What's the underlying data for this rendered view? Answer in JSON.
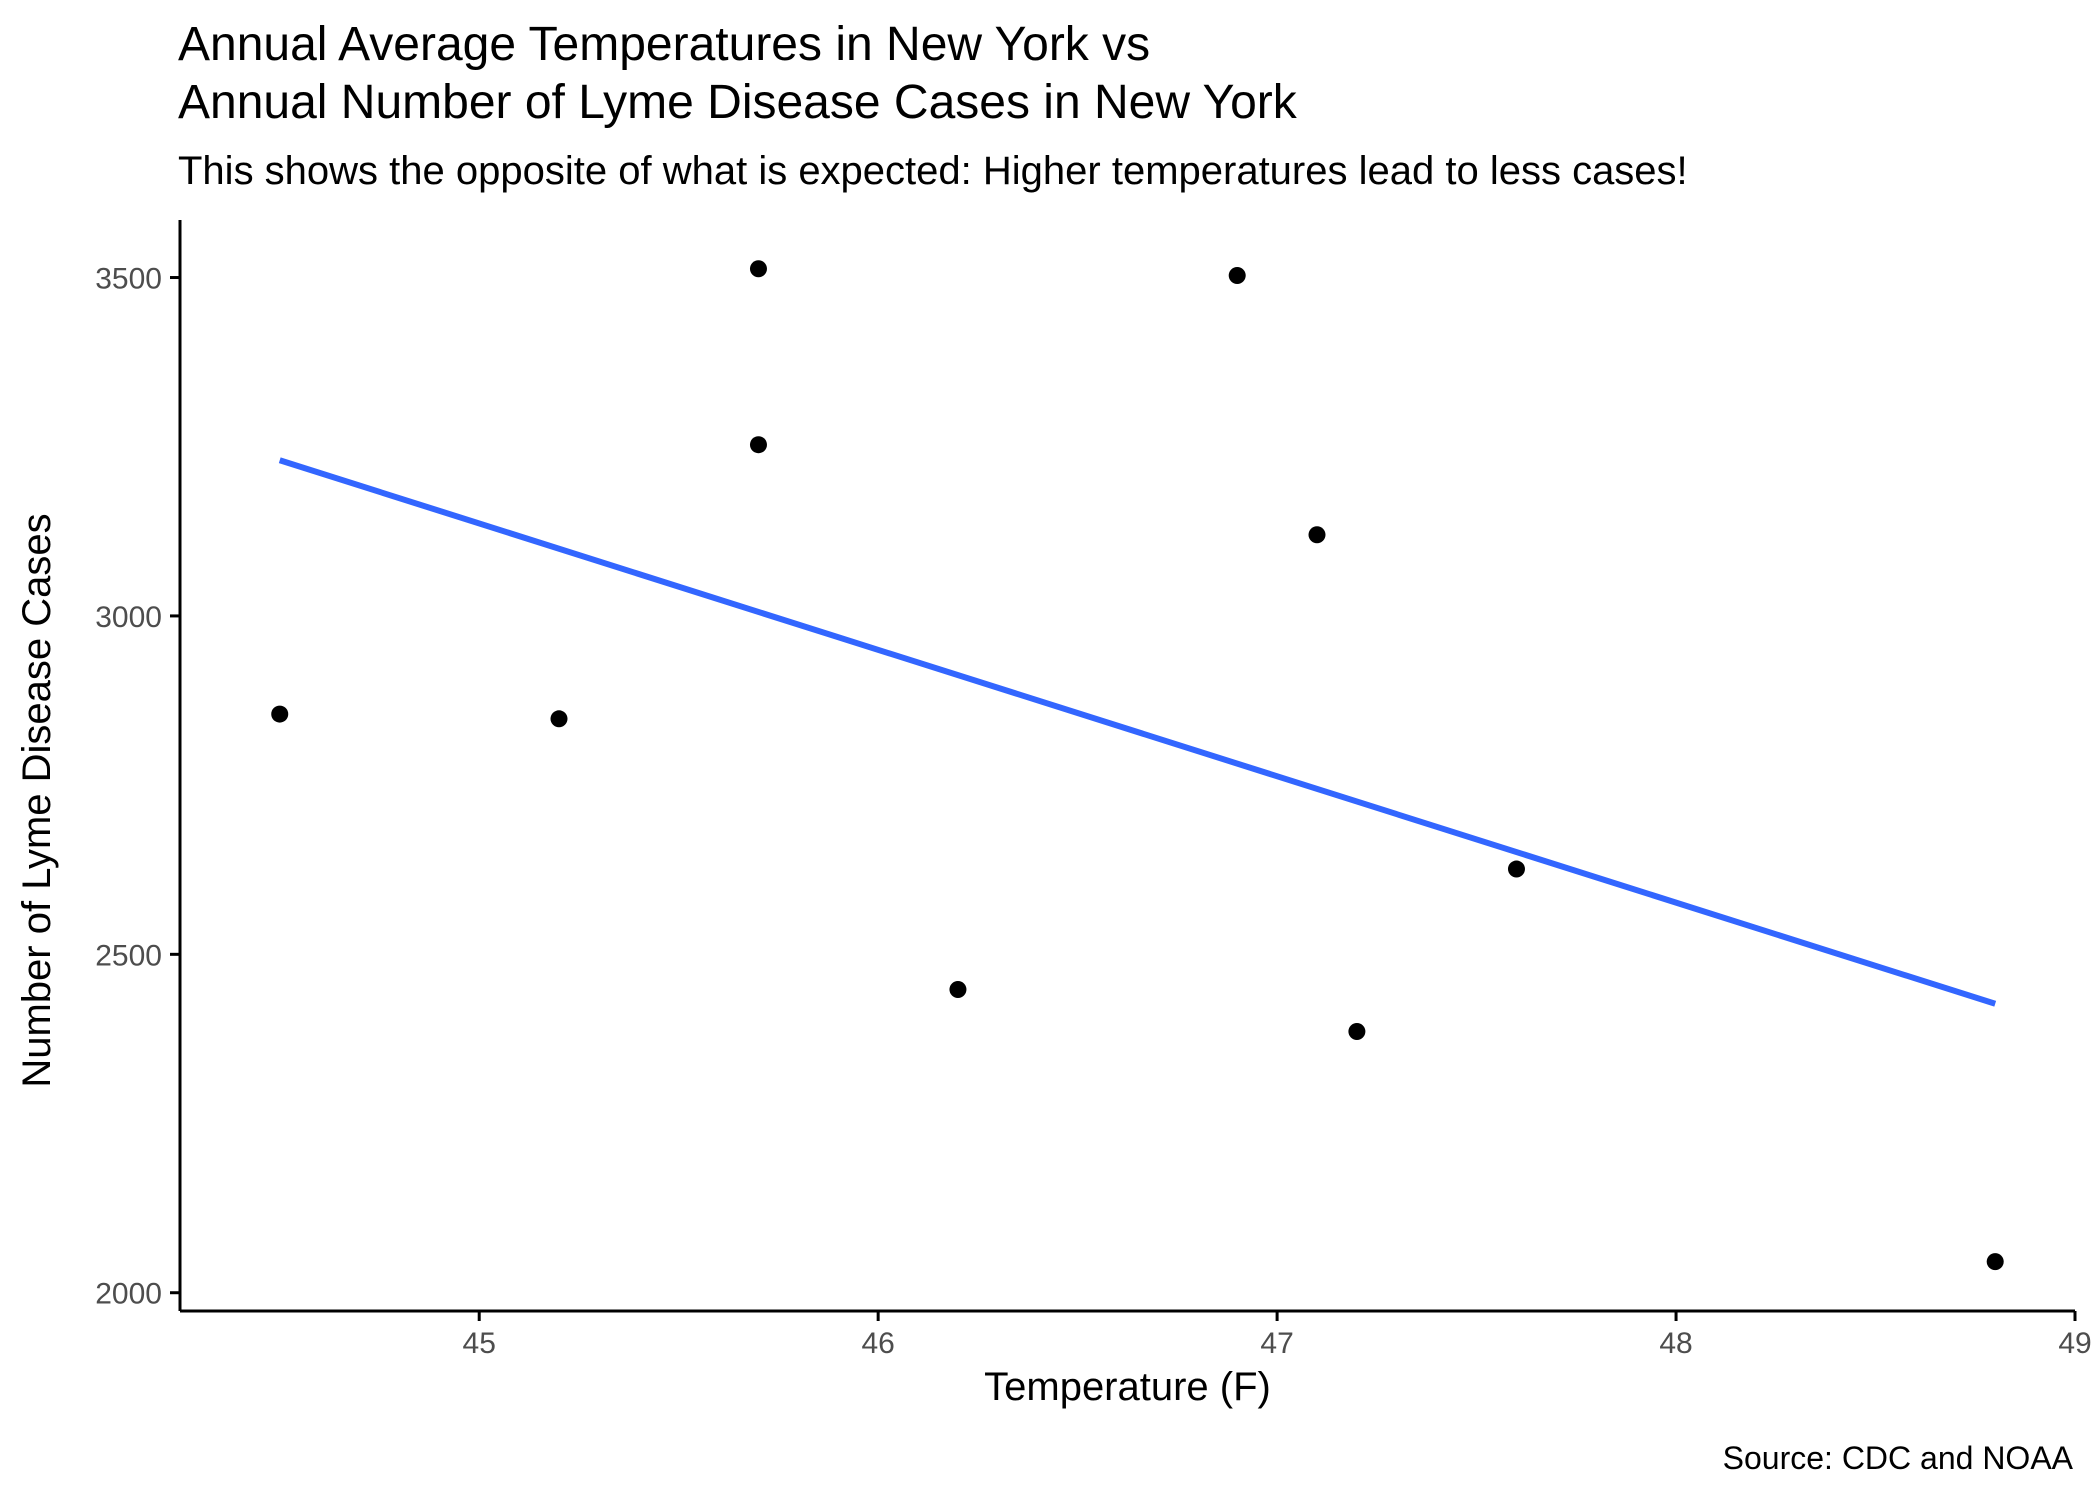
{
  "chart_data": {
    "type": "scatter",
    "title_line1": "Annual Average Temperatures in New York vs",
    "title_line2": "Annual Number of Lyme Disease Cases in New York",
    "subtitle": "This shows the opposite of what is expected: Higher temperatures lead to less cases!",
    "caption": "Source: CDC and NOAA",
    "xlabel": "Temperature (F)",
    "ylabel": "Number of Lyme Disease Cases",
    "xlim": [
      44.25,
      49.0
    ],
    "ylim": [
      1973,
      3585
    ],
    "x_ticks": [
      45,
      46,
      47,
      48,
      49
    ],
    "y_ticks": [
      2000,
      2500,
      3000,
      3500
    ],
    "grid": false,
    "points": [
      {
        "x": 44.5,
        "y": 2855
      },
      {
        "x": 45.2,
        "y": 2848
      },
      {
        "x": 45.7,
        "y": 3513
      },
      {
        "x": 45.7,
        "y": 3253
      },
      {
        "x": 46.2,
        "y": 2448
      },
      {
        "x": 46.9,
        "y": 3503
      },
      {
        "x": 47.1,
        "y": 3120
      },
      {
        "x": 47.2,
        "y": 2386
      },
      {
        "x": 47.6,
        "y": 2626
      },
      {
        "x": 48.8,
        "y": 2046
      }
    ],
    "trend_line": {
      "type": "linear",
      "color": "#3366ff",
      "x": [
        44.5,
        48.8
      ],
      "y": [
        3230,
        2427
      ]
    },
    "point_color": "#000000",
    "axis_color": "#000000"
  }
}
